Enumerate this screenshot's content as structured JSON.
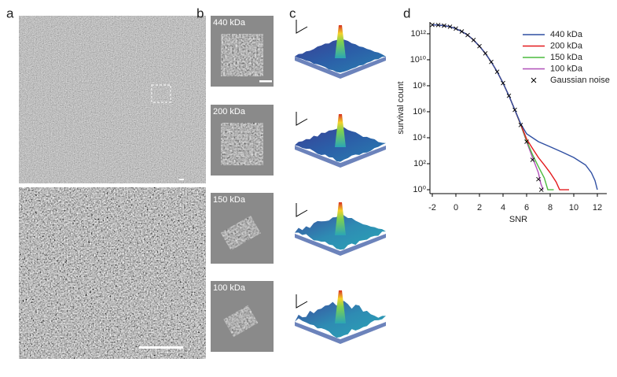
{
  "panel_labels": [
    "a",
    "b",
    "c",
    "d"
  ],
  "b_labels": [
    "440 kDa",
    "200 kDa",
    "150 kDa",
    "100 kDa"
  ],
  "chart_data": {
    "type": "line",
    "xlabel": "SNR",
    "ylabel": "survival count",
    "log_y": true,
    "legend": "upper right",
    "xlim": [
      -2.2,
      12.8
    ],
    "xticks": [
      -2,
      0,
      2,
      4,
      6,
      8,
      10,
      12
    ],
    "ylim": [
      0.5,
      8000000000000
    ],
    "yticks": [
      {
        "value": 1,
        "label": "10⁰"
      },
      {
        "value": 100,
        "label": "10²"
      },
      {
        "value": 10000,
        "label": "10⁴"
      },
      {
        "value": 1000000,
        "label": "10⁶"
      },
      {
        "value": 100000000,
        "label": "10⁸"
      },
      {
        "value": 10000000000,
        "label": "10¹⁰"
      },
      {
        "value": 1000000000000,
        "label": "10¹²"
      }
    ],
    "series": [
      {
        "name": "440 kDa",
        "color": "#2f4fa2",
        "x": [
          -2,
          -1.5,
          -1,
          -0.5,
          0,
          0.5,
          1,
          1.5,
          2,
          2.5,
          3,
          3.5,
          4,
          4.5,
          5,
          5.5,
          6,
          7,
          8,
          9,
          10,
          11,
          11.5,
          11.8,
          12
        ],
        "values": [
          4900000000000,
          4700000000000,
          4200000000000,
          3500000000000,
          2500000000000,
          1500000000000,
          800000000000,
          330000000000,
          110000000000,
          31000000000,
          6800000000,
          1200000000,
          160000000,
          17000000,
          1400000,
          120000,
          20000,
          5000,
          2000,
          800,
          300,
          80,
          20,
          5,
          1
        ]
      },
      {
        "name": "200 kDa",
        "color": "#e3191c",
        "x": [
          -2,
          -1.5,
          -1,
          -0.5,
          0,
          0.5,
          1,
          1.5,
          2,
          2.5,
          3,
          3.5,
          4,
          4.5,
          5,
          5.5,
          6,
          6.5,
          7,
          7.5,
          8,
          8.5,
          8.8,
          9.6
        ],
        "values": [
          4900000000000,
          4700000000000,
          4200000000000,
          3500000000000,
          2500000000000,
          1500000000000,
          800000000000,
          330000000000,
          110000000000,
          31000000000,
          6800000000,
          1200000000,
          160000000,
          17000000,
          1400000,
          110000,
          8000,
          1500,
          300,
          80,
          20,
          4,
          1,
          1
        ]
      },
      {
        "name": "150 kDa",
        "color": "#4cbb3f",
        "x": [
          -2,
          -1.5,
          -1,
          -0.5,
          0,
          0.5,
          1,
          1.5,
          2,
          2.5,
          3,
          3.5,
          4,
          4.5,
          5,
          5.5,
          6,
          6.5,
          7,
          7.5,
          7.8,
          8.3
        ],
        "values": [
          4900000000000,
          4700000000000,
          4200000000000,
          3500000000000,
          2500000000000,
          1500000000000,
          800000000000,
          330000000000,
          110000000000,
          31000000000,
          6800000000,
          1200000000,
          160000000,
          17000000,
          1400000,
          100000,
          6000,
          500,
          60,
          8,
          1,
          1
        ]
      },
      {
        "name": "100 kDa",
        "color": "#b04fb8",
        "x": [
          -2,
          -1.5,
          -1,
          -0.5,
          0,
          0.5,
          1,
          1.5,
          2,
          2.5,
          3,
          3.5,
          4,
          4.5,
          5,
          5.5,
          6,
          6.5,
          7,
          7.2,
          7.4
        ],
        "values": [
          4900000000000,
          4700000000000,
          4200000000000,
          3500000000000,
          2500000000000,
          1500000000000,
          800000000000,
          330000000000,
          110000000000,
          31000000000,
          6800000000,
          1200000000,
          160000000,
          17000000,
          1400000,
          98000,
          5000,
          300,
          20,
          3,
          1
        ]
      },
      {
        "name": "Gaussian noise",
        "color": "#000000",
        "marker": "x",
        "x": [
          -2,
          -1.5,
          -1,
          -0.5,
          0,
          0.5,
          1,
          1.5,
          2,
          2.5,
          3,
          3.5,
          4,
          4.5,
          5,
          5.5,
          6,
          6.5,
          7,
          7.25
        ],
        "values": [
          4900000000000,
          4700000000000,
          4200000000000,
          3500000000000,
          2500000000000,
          1500000000000,
          800000000000,
          330000000000,
          110000000000,
          31000000000,
          6800000000,
          1200000000,
          160000000,
          17000000,
          1400000,
          95000,
          4900,
          200,
          6.4,
          1
        ]
      }
    ]
  }
}
